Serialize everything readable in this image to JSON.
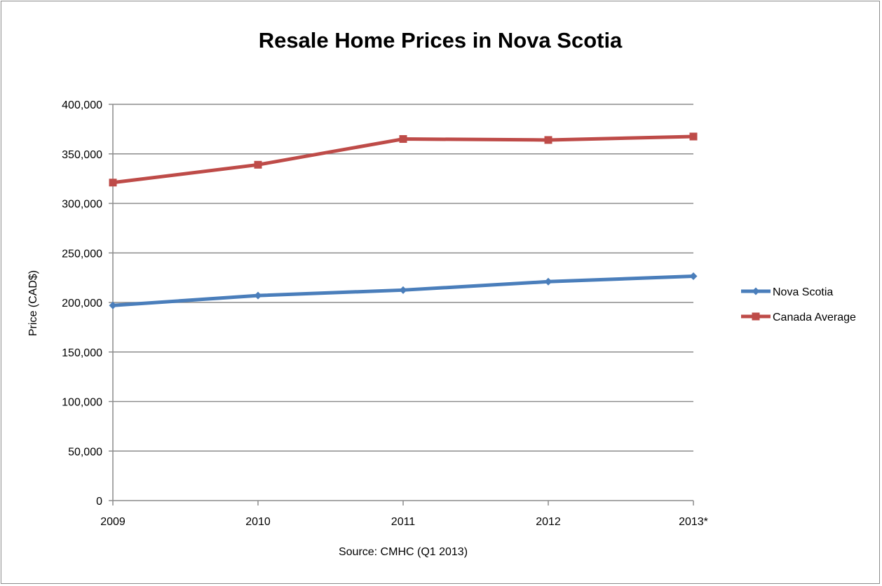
{
  "chart_data": {
    "type": "line",
    "title": "Resale Home Prices in Nova Scotia",
    "xlabel": "Source: CMHC (Q1 2013)",
    "ylabel": "Price (CAD$)",
    "categories": [
      "2009",
      "2010",
      "2011",
      "2012",
      "2013*"
    ],
    "ylim": [
      0,
      400000
    ],
    "yticks": [
      0,
      50000,
      100000,
      150000,
      200000,
      250000,
      300000,
      350000,
      400000
    ],
    "ytick_labels": [
      "0",
      "50,000",
      "100,000",
      "150,000",
      "200,000",
      "250,000",
      "300,000",
      "350,000",
      "400,000"
    ],
    "grid": true,
    "legend_position": "right",
    "series": [
      {
        "name": "Nova Scotia",
        "color": "#4a7ebb",
        "marker": "diamond",
        "values": [
          197000,
          207000,
          212500,
          221000,
          226500
        ]
      },
      {
        "name": "Canada Average",
        "color": "#be4b48",
        "marker": "square",
        "values": [
          321000,
          339000,
          365000,
          364000,
          367500
        ]
      }
    ]
  }
}
